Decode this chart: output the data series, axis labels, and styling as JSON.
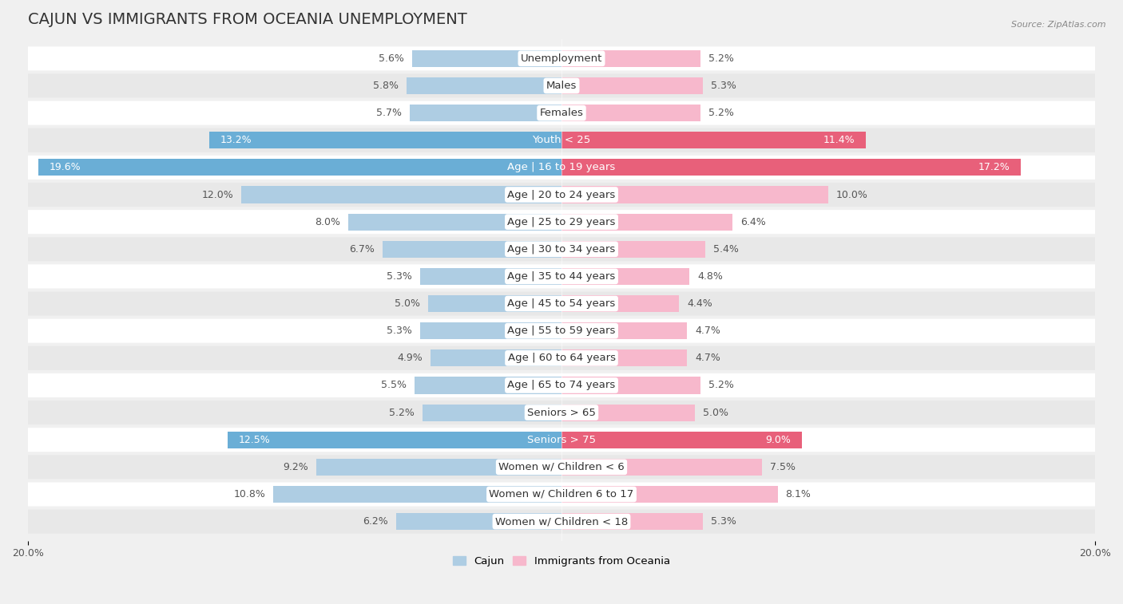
{
  "title": "CAJUN VS IMMIGRANTS FROM OCEANIA UNEMPLOYMENT",
  "source": "Source: ZipAtlas.com",
  "categories": [
    "Unemployment",
    "Males",
    "Females",
    "Youth < 25",
    "Age | 16 to 19 years",
    "Age | 20 to 24 years",
    "Age | 25 to 29 years",
    "Age | 30 to 34 years",
    "Age | 35 to 44 years",
    "Age | 45 to 54 years",
    "Age | 55 to 59 years",
    "Age | 60 to 64 years",
    "Age | 65 to 74 years",
    "Seniors > 65",
    "Seniors > 75",
    "Women w/ Children < 6",
    "Women w/ Children 6 to 17",
    "Women w/ Children < 18"
  ],
  "cajun_values": [
    5.6,
    5.8,
    5.7,
    13.2,
    19.6,
    12.0,
    8.0,
    6.7,
    5.3,
    5.0,
    5.3,
    4.9,
    5.5,
    5.2,
    12.5,
    9.2,
    10.8,
    6.2
  ],
  "oceania_values": [
    5.2,
    5.3,
    5.2,
    11.4,
    17.2,
    10.0,
    6.4,
    5.4,
    4.8,
    4.4,
    4.7,
    4.7,
    5.2,
    5.0,
    9.0,
    7.5,
    8.1,
    5.3
  ],
  "cajun_color_normal": "#aecde3",
  "cajun_color_highlight": "#6aaed6",
  "oceania_color_normal": "#f7b8cc",
  "oceania_color_highlight": "#e8607a",
  "background_color": "#f0f0f0",
  "row_color_even": "#ffffff",
  "row_color_odd": "#e8e8e8",
  "highlight_rows": [
    3,
    4,
    14
  ],
  "xlim": 20.0,
  "legend_cajun": "Cajun",
  "legend_oceania": "Immigrants from Oceania",
  "title_fontsize": 14,
  "label_fontsize": 9.5,
  "value_fontsize": 9,
  "axis_tick_fontsize": 9
}
